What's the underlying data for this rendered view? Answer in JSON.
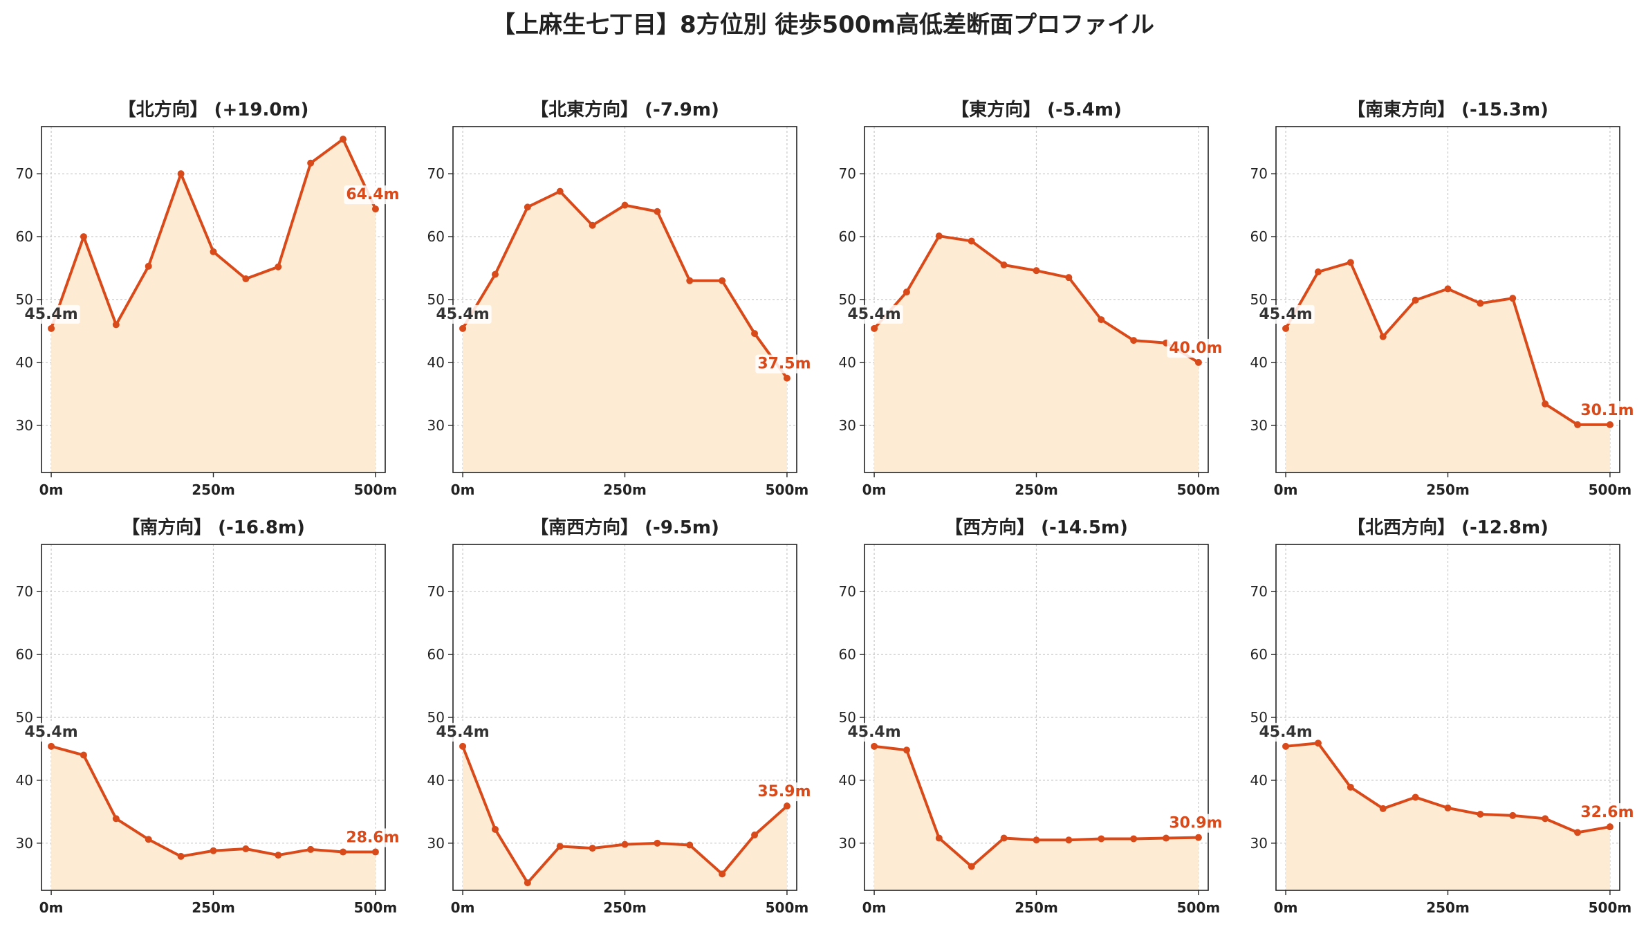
{
  "title": "【上麻生七丁目】8方位別 徒歩500m高低差断面プロファイル",
  "colors": {
    "line": "#d94a1a",
    "fill": "#fdebd3",
    "grid": "#c8c8c8",
    "start_label": "#333333",
    "end_label": "#d94a1a"
  },
  "chart_data": [
    {
      "type": "area",
      "title": "【北方向】 (+19.0m)",
      "x": [
        0,
        50,
        100,
        150,
        200,
        250,
        300,
        350,
        400,
        450,
        500
      ],
      "values": [
        45.4,
        60.0,
        46.0,
        55.3,
        70.0,
        57.6,
        53.3,
        55.2,
        71.7,
        75.5,
        64.4
      ],
      "x_ticks": [
        0,
        250,
        500
      ],
      "x_tick_labels": [
        "0m",
        "250m",
        "500m"
      ],
      "y_ticks": [
        30,
        40,
        50,
        60,
        70
      ],
      "ylim": [
        22.5,
        77.5
      ],
      "xlim": [
        -15,
        515
      ],
      "start_label": "45.4m",
      "end_label": "64.4m",
      "grid": true
    },
    {
      "type": "area",
      "title": "【北東方向】 (-7.9m)",
      "x": [
        0,
        50,
        100,
        150,
        200,
        250,
        300,
        350,
        400,
        450,
        500
      ],
      "values": [
        45.4,
        54.0,
        64.7,
        67.2,
        61.8,
        65.0,
        64.0,
        53.0,
        53.0,
        44.6,
        37.5
      ],
      "x_ticks": [
        0,
        250,
        500
      ],
      "x_tick_labels": [
        "0m",
        "250m",
        "500m"
      ],
      "y_ticks": [
        30,
        40,
        50,
        60,
        70
      ],
      "ylim": [
        22.5,
        77.5
      ],
      "xlim": [
        -15,
        515
      ],
      "start_label": "45.4m",
      "end_label": "37.5m",
      "grid": true
    },
    {
      "type": "area",
      "title": "【東方向】 (-5.4m)",
      "x": [
        0,
        50,
        100,
        150,
        200,
        250,
        300,
        350,
        400,
        450,
        500
      ],
      "values": [
        45.4,
        51.2,
        60.1,
        59.3,
        55.5,
        54.6,
        53.5,
        46.8,
        43.5,
        43.1,
        40.0
      ],
      "x_ticks": [
        0,
        250,
        500
      ],
      "x_tick_labels": [
        "0m",
        "250m",
        "500m"
      ],
      "y_ticks": [
        30,
        40,
        50,
        60,
        70
      ],
      "ylim": [
        22.5,
        77.5
      ],
      "xlim": [
        -15,
        515
      ],
      "start_label": "45.4m",
      "end_label": "40.0m",
      "grid": true
    },
    {
      "type": "area",
      "title": "【南東方向】 (-15.3m)",
      "x": [
        0,
        50,
        100,
        150,
        200,
        250,
        300,
        350,
        400,
        450,
        500
      ],
      "values": [
        45.4,
        54.4,
        55.9,
        44.1,
        49.9,
        51.7,
        49.4,
        50.2,
        33.4,
        30.1,
        30.1
      ],
      "x_ticks": [
        0,
        250,
        500
      ],
      "x_tick_labels": [
        "0m",
        "250m",
        "500m"
      ],
      "y_ticks": [
        30,
        40,
        50,
        60,
        70
      ],
      "ylim": [
        22.5,
        77.5
      ],
      "xlim": [
        -15,
        515
      ],
      "start_label": "45.4m",
      "end_label": "30.1m",
      "grid": true
    },
    {
      "type": "area",
      "title": "【南方向】 (-16.8m)",
      "x": [
        0,
        50,
        100,
        150,
        200,
        250,
        300,
        350,
        400,
        450,
        500
      ],
      "values": [
        45.4,
        44.0,
        33.9,
        30.6,
        27.9,
        28.8,
        29.1,
        28.1,
        29.0,
        28.6,
        28.6
      ],
      "x_ticks": [
        0,
        250,
        500
      ],
      "x_tick_labels": [
        "0m",
        "250m",
        "500m"
      ],
      "y_ticks": [
        30,
        40,
        50,
        60,
        70
      ],
      "ylim": [
        22.5,
        77.5
      ],
      "xlim": [
        -15,
        515
      ],
      "start_label": "45.4m",
      "end_label": "28.6m",
      "grid": true
    },
    {
      "type": "area",
      "title": "【南西方向】 (-9.5m)",
      "x": [
        0,
        50,
        100,
        150,
        200,
        250,
        300,
        350,
        400,
        450,
        500
      ],
      "values": [
        45.4,
        32.2,
        23.7,
        29.5,
        29.2,
        29.8,
        30.0,
        29.7,
        25.1,
        31.3,
        35.9
      ],
      "x_ticks": [
        0,
        250,
        500
      ],
      "x_tick_labels": [
        "0m",
        "250m",
        "500m"
      ],
      "y_ticks": [
        30,
        40,
        50,
        60,
        70
      ],
      "ylim": [
        22.5,
        77.5
      ],
      "xlim": [
        -15,
        515
      ],
      "start_label": "45.4m",
      "end_label": "35.9m",
      "grid": true
    },
    {
      "type": "area",
      "title": "【西方向】 (-14.5m)",
      "x": [
        0,
        50,
        100,
        150,
        200,
        250,
        300,
        350,
        400,
        450,
        500
      ],
      "values": [
        45.4,
        44.8,
        30.8,
        26.3,
        30.8,
        30.5,
        30.5,
        30.7,
        30.7,
        30.8,
        30.9
      ],
      "x_ticks": [
        0,
        250,
        500
      ],
      "x_tick_labels": [
        "0m",
        "250m",
        "500m"
      ],
      "y_ticks": [
        30,
        40,
        50,
        60,
        70
      ],
      "ylim": [
        22.5,
        77.5
      ],
      "xlim": [
        -15,
        515
      ],
      "start_label": "45.4m",
      "end_label": "30.9m",
      "grid": true
    },
    {
      "type": "area",
      "title": "【北西方向】 (-12.8m)",
      "x": [
        0,
        50,
        100,
        150,
        200,
        250,
        300,
        350,
        400,
        450,
        500
      ],
      "values": [
        45.4,
        45.9,
        38.9,
        35.5,
        37.3,
        35.6,
        34.6,
        34.4,
        33.9,
        31.7,
        32.6
      ],
      "x_ticks": [
        0,
        250,
        500
      ],
      "x_tick_labels": [
        "0m",
        "250m",
        "500m"
      ],
      "y_ticks": [
        30,
        40,
        50,
        60,
        70
      ],
      "ylim": [
        22.5,
        77.5
      ],
      "xlim": [
        -15,
        515
      ],
      "start_label": "45.4m",
      "end_label": "32.6m",
      "grid": true
    }
  ]
}
